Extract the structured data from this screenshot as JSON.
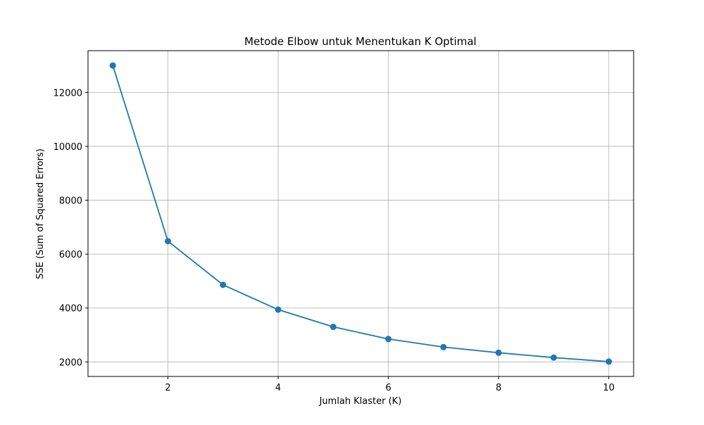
{
  "chart_data": {
    "type": "line",
    "title": "Metode Elbow untuk Menentukan K Optimal",
    "xlabel": "Jumlah Klaster (K)",
    "ylabel": "SSE (Sum of Squared Errors)",
    "x": [
      1,
      2,
      3,
      4,
      5,
      6,
      7,
      8,
      9,
      10
    ],
    "series": [
      {
        "values": [
          13000,
          6480,
          4860,
          3940,
          3300,
          2850,
          2550,
          2340,
          2160,
          2010
        ]
      }
    ],
    "xlim": [
      0.55,
      10.45
    ],
    "ylim": [
      1460,
      13550
    ],
    "xticks": [
      2,
      4,
      6,
      8,
      10
    ],
    "yticks": [
      2000,
      4000,
      6000,
      8000,
      10000,
      12000
    ],
    "grid": true,
    "marker": "circle",
    "line_color": "#1f77b4",
    "grid_color": "#b0b0b0"
  }
}
